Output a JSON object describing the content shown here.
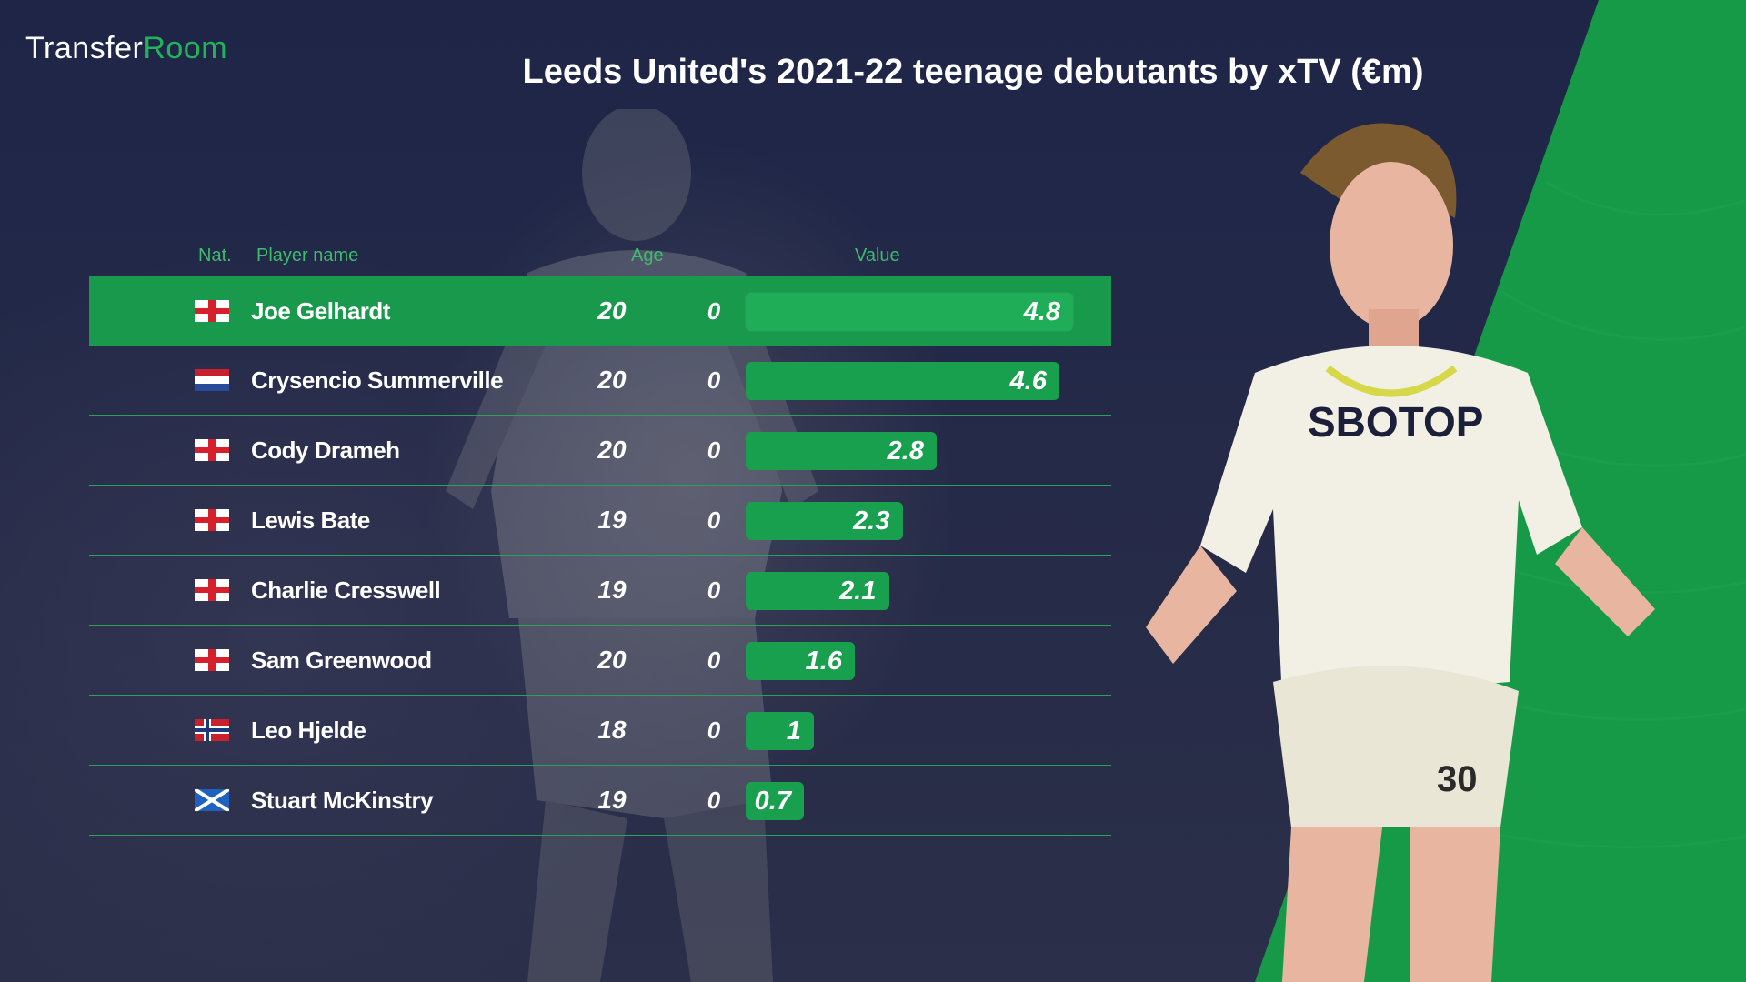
{
  "brand": {
    "part1": "Transfer",
    "part2": "Room"
  },
  "headers": {
    "nat": "Nat.",
    "name": "Player name",
    "age": "Age",
    "value": "Value"
  },
  "colors": {
    "background": "#1b2140",
    "accent": "#1fae57",
    "highlight_row": "#18994b"
  },
  "chart_data": {
    "type": "bar",
    "title": "Leeds United's 2021-22 teenage debutants by xTV (€m)",
    "categories": [
      "Joe Gelhardt",
      "Crysencio Summerville",
      "Cody Drameh",
      "Lewis Bate",
      "Charlie Cresswell",
      "Sam Greenwood",
      "Leo Hjelde",
      "Stuart McKinstry"
    ],
    "values": [
      4.8,
      4.6,
      2.8,
      2.3,
      2.1,
      1.6,
      1,
      0.7
    ],
    "rows": [
      {
        "nat": "england",
        "name": "Joe Gelhardt",
        "age": "20",
        "col2": "0",
        "value": 4.8,
        "value_label": "4.8",
        "highlight": true
      },
      {
        "nat": "netherlands",
        "name": "Crysencio Summerville",
        "age": "20",
        "col2": "0",
        "value": 4.6,
        "value_label": "4.6",
        "highlight": false
      },
      {
        "nat": "england",
        "name": "Cody Drameh",
        "age": "20",
        "col2": "0",
        "value": 2.8,
        "value_label": "2.8",
        "highlight": false
      },
      {
        "nat": "england",
        "name": "Lewis Bate",
        "age": "19",
        "col2": "0",
        "value": 2.3,
        "value_label": "2.3",
        "highlight": false
      },
      {
        "nat": "england",
        "name": "Charlie Cresswell",
        "age": "19",
        "col2": "0",
        "value": 2.1,
        "value_label": "2.1",
        "highlight": false
      },
      {
        "nat": "england",
        "name": "Sam Greenwood",
        "age": "20",
        "col2": "0",
        "value": 1.6,
        "value_label": "1.6",
        "highlight": false
      },
      {
        "nat": "norway",
        "name": "Leo Hjelde",
        "age": "18",
        "col2": "0",
        "value": 1,
        "value_label": "1",
        "highlight": false
      },
      {
        "nat": "scotland",
        "name": "Stuart McKinstry",
        "age": "19",
        "col2": "0",
        "value": 0.7,
        "value_label": "0.7",
        "highlight": false
      }
    ],
    "orientation": "horizontal",
    "legend": "none",
    "grid": false
  },
  "player_shirt": {
    "sponsor": "SBOTOP",
    "number": "30"
  }
}
